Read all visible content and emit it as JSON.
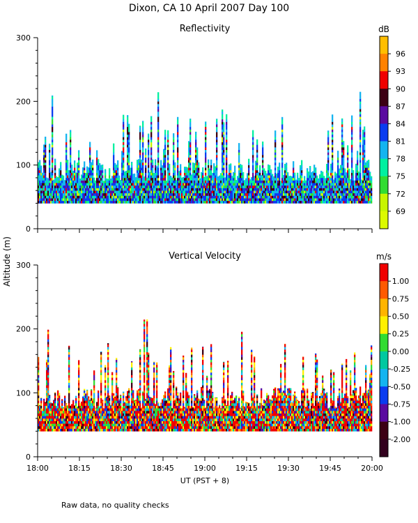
{
  "page_title": "Dixon, CA 10 April 2007  Day 100",
  "shared_ylabel": "Altitude (m)",
  "footnote": "Raw data, no quality checks",
  "chart_data": [
    {
      "type": "heatmap",
      "title": "Reflectivity",
      "ylabel": "Altitude (m)",
      "ylim": [
        0,
        300
      ],
      "yticks": [
        0,
        100,
        200,
        300
      ],
      "xlim_minutes": [
        0,
        120
      ],
      "data_base_altitude_m": 40,
      "peak_altitude_m": 220,
      "colorbar": {
        "unit": "dB",
        "labels": [
          "96",
          "93",
          "90",
          "87",
          "84",
          "81",
          "78",
          "75",
          "72",
          "69"
        ],
        "colors": [
          "#ffbe00",
          "#ff8200",
          "#f00000",
          "#3c0014",
          "#5a0aa0",
          "#0a3cf0",
          "#14b4f0",
          "#00f0a0",
          "#32dc32",
          "#c8f500",
          "#dcfa00"
        ]
      }
    },
    {
      "type": "heatmap",
      "title": "Vertical Velocity",
      "ylabel": "Altitude (m)",
      "ylim": [
        0,
        300
      ],
      "yticks": [
        0,
        100,
        200,
        300
      ],
      "xlim_minutes": [
        0,
        120
      ],
      "xlabel": "UT  (PST + 8)",
      "xticklabels": [
        "18:00",
        "18:15",
        "18:30",
        "18:45",
        "19:00",
        "19:15",
        "19:30",
        "19:45",
        "20:00"
      ],
      "data_base_altitude_m": 40,
      "peak_altitude_m": 220,
      "colorbar": {
        "unit": "m/s",
        "labels": [
          "1.00",
          "0.75",
          "0.50",
          "0.25",
          "0.00",
          "-0.25",
          "-0.50",
          "-0.75",
          "-1.00",
          "-2.00"
        ],
        "colors": [
          "#f00000",
          "#ff5a00",
          "#ffb400",
          "#fff000",
          "#32dc32",
          "#00c8a0",
          "#14b4f0",
          "#0a3cf0",
          "#5a0aa0",
          "#3c0014",
          "#32001e"
        ]
      }
    }
  ]
}
